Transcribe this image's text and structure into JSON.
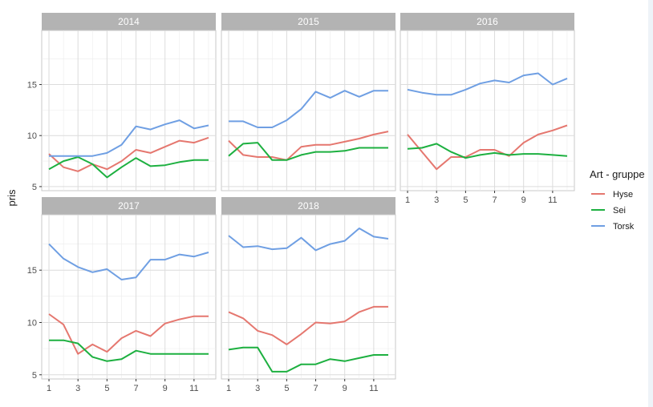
{
  "chart_data": {
    "type": "line",
    "ylabel": "pris",
    "xlabel": "",
    "x_ticks": [
      1,
      3,
      5,
      7,
      9,
      11
    ],
    "y_ticks": [
      5,
      10,
      15
    ],
    "ylim": [
      4.6,
      20.3
    ],
    "xlim": [
      0.5,
      12.5
    ],
    "grid": true,
    "legend": {
      "title": "Art - gruppe",
      "position": "right",
      "entries": [
        {
          "name": "Hyse",
          "color": "#e5776f"
        },
        {
          "name": "Sei",
          "color": "#1db040"
        },
        {
          "name": "Torsk",
          "color": "#6f9fe3"
        }
      ]
    },
    "panels": [
      {
        "title": "2014",
        "series": [
          {
            "name": "Hyse",
            "values": [
              8.2,
              6.9,
              6.5,
              7.2,
              6.7,
              7.5,
              8.6,
              8.3,
              8.9,
              9.5,
              9.3,
              9.8
            ]
          },
          {
            "name": "Sei",
            "values": [
              6.7,
              7.5,
              7.9,
              7.2,
              5.9,
              6.9,
              7.8,
              7.0,
              7.1,
              7.4,
              7.6,
              7.6
            ]
          },
          {
            "name": "Torsk",
            "values": [
              8.0,
              8.0,
              8.0,
              8.0,
              8.3,
              9.1,
              10.9,
              10.6,
              11.1,
              11.5,
              10.7,
              11.0
            ]
          }
        ]
      },
      {
        "title": "2015",
        "series": [
          {
            "name": "Hyse",
            "values": [
              9.5,
              8.1,
              7.9,
              7.9,
              7.6,
              8.9,
              9.1,
              9.1,
              9.4,
              9.7,
              10.1,
              10.4
            ]
          },
          {
            "name": "Sei",
            "values": [
              8.0,
              9.2,
              9.3,
              7.6,
              7.6,
              8.1,
              8.4,
              8.4,
              8.5,
              8.8,
              8.8,
              8.8
            ]
          },
          {
            "name": "Torsk",
            "values": [
              11.4,
              11.4,
              10.8,
              10.8,
              11.5,
              12.6,
              14.3,
              13.7,
              14.4,
              13.8,
              14.4,
              14.4
            ]
          }
        ]
      },
      {
        "title": "2016",
        "series": [
          {
            "name": "Hyse",
            "values": [
              10.1,
              8.4,
              6.7,
              7.9,
              7.9,
              8.6,
              8.6,
              8.0,
              9.3,
              10.1,
              10.5,
              11.0
            ]
          },
          {
            "name": "Sei",
            "values": [
              8.7,
              8.8,
              9.2,
              8.4,
              7.8,
              8.1,
              8.3,
              8.1,
              8.2,
              8.2,
              8.1,
              8.0
            ]
          },
          {
            "name": "Torsk",
            "values": [
              14.5,
              14.2,
              14.0,
              14.0,
              14.5,
              15.1,
              15.4,
              15.2,
              15.9,
              16.1,
              15.0,
              15.6
            ]
          }
        ]
      },
      {
        "title": "2017",
        "series": [
          {
            "name": "Hyse",
            "values": [
              10.8,
              9.8,
              7.0,
              7.9,
              7.2,
              8.5,
              9.2,
              8.7,
              9.9,
              10.3,
              10.6,
              10.6
            ]
          },
          {
            "name": "Sei",
            "values": [
              8.3,
              8.3,
              8.0,
              6.7,
              6.3,
              6.5,
              7.3,
              7.0,
              7.0,
              7.0,
              7.0,
              7.0
            ]
          },
          {
            "name": "Torsk",
            "values": [
              17.5,
              16.1,
              15.3,
              14.8,
              15.1,
              14.1,
              14.3,
              16.0,
              16.0,
              16.5,
              16.3,
              16.7
            ]
          }
        ]
      },
      {
        "title": "2018",
        "series": [
          {
            "name": "Hyse",
            "values": [
              11.0,
              10.4,
              9.2,
              8.8,
              7.9,
              8.9,
              10.0,
              9.9,
              10.1,
              11.0,
              11.5,
              11.5
            ]
          },
          {
            "name": "Sei",
            "values": [
              7.4,
              7.6,
              7.6,
              5.3,
              5.3,
              6.0,
              6.0,
              6.5,
              6.3,
              6.6,
              6.9,
              6.9
            ]
          },
          {
            "name": "Torsk",
            "values": [
              18.3,
              17.2,
              17.3,
              17.0,
              17.1,
              18.1,
              16.9,
              17.5,
              17.8,
              19.0,
              18.2,
              18.0
            ]
          }
        ]
      }
    ]
  }
}
